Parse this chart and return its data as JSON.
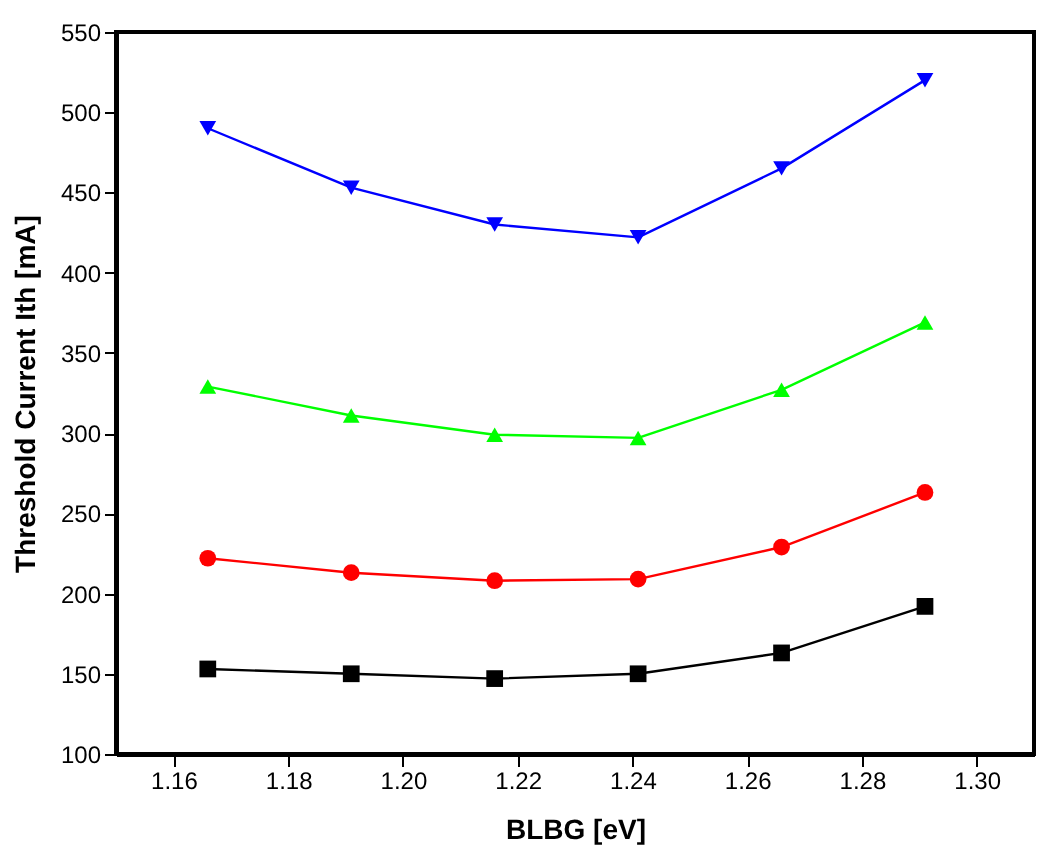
{
  "chart_data": {
    "type": "line",
    "xlabel": "BLBG [eV]",
    "ylabel": "Threshold Current Ith [mA]",
    "x": [
      1.166,
      1.191,
      1.216,
      1.241,
      1.266,
      1.291
    ],
    "series": [
      {
        "color": "#000000",
        "marker": "square",
        "values": [
          153,
          150,
          147,
          150,
          163,
          192
        ]
      },
      {
        "color": "#ff0000",
        "marker": "circle",
        "values": [
          222,
          213,
          208,
          209,
          229,
          263
        ]
      },
      {
        "color": "#00ff00",
        "marker": "triangle",
        "values": [
          329,
          311,
          299,
          297,
          327,
          369
        ]
      },
      {
        "color": "#0000ff",
        "marker": "triangle-down",
        "values": [
          490,
          453,
          430,
          422,
          465,
          520
        ]
      }
    ],
    "xlim": [
      1.15,
      1.31
    ],
    "xticks": [
      1.16,
      1.18,
      {
        "value": 1.2,
        "label": "1.20"
      },
      1.22,
      1.24,
      1.26,
      1.28,
      {
        "value": 1.3,
        "label": "1.30"
      }
    ],
    "ylim": [
      100,
      550
    ],
    "yticks": [
      100,
      150,
      200,
      250,
      300,
      350,
      400,
      450,
      500,
      550
    ],
    "grid": false,
    "line_style": "solid"
  }
}
